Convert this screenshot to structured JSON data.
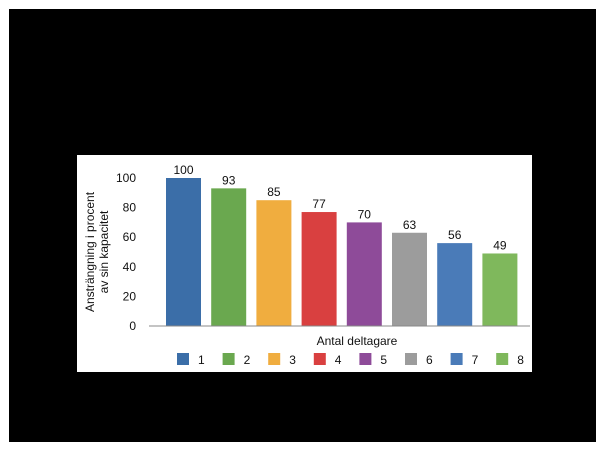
{
  "chart_data": {
    "type": "bar",
    "categories": [
      "1",
      "2",
      "3",
      "4",
      "5",
      "6",
      "7",
      "8"
    ],
    "values": [
      100,
      93,
      85,
      77,
      70,
      63,
      56,
      49
    ],
    "data_labels": [
      "100",
      "93",
      "85",
      "77",
      "70",
      "63",
      "56",
      "49"
    ],
    "colors": [
      "#3b6ea8",
      "#6aa84f",
      "#f0ad3f",
      "#d94040",
      "#8e4b99",
      "#9c9c9c",
      "#4a7bb8",
      "#7fb85c"
    ],
    "title": "",
    "xlabel": "Antal deltagare",
    "ylabel_lines": [
      "Ansträngning i procent",
      "av sin kapacitet"
    ],
    "ylim": [
      0,
      100
    ],
    "yticks": [
      "0",
      "20",
      "40",
      "60",
      "80",
      "100"
    ],
    "ytick_values": [
      0,
      20,
      40,
      60,
      80,
      100
    ],
    "grid": false,
    "legend": {
      "placement": "bottom",
      "entries": [
        "1",
        "2",
        "3",
        "4",
        "5",
        "6",
        "7",
        "8"
      ]
    }
  }
}
